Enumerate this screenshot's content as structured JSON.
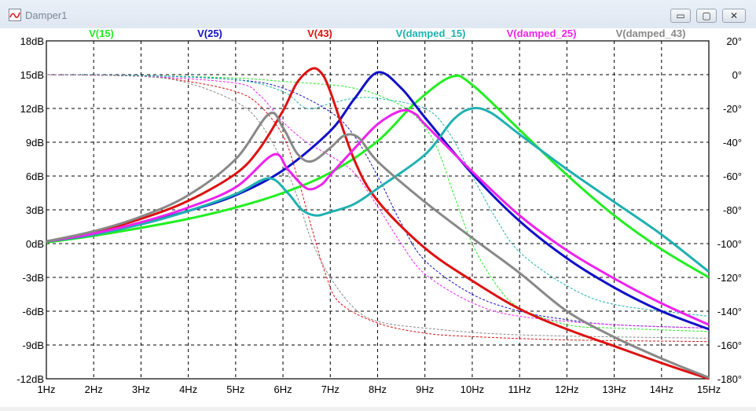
{
  "window": {
    "title": "Damper1",
    "buttons": {
      "minimize": "▭",
      "maximize": "▢",
      "close": "✕"
    }
  },
  "chart_data": {
    "type": "line",
    "legend_position": "top",
    "grid": true,
    "x": [
      1,
      2,
      3,
      4,
      5,
      6,
      7,
      8,
      9,
      10,
      11,
      12,
      13,
      14,
      15
    ],
    "xlim": [
      1,
      15
    ],
    "x_ticks": [
      "1Hz",
      "2Hz",
      "3Hz",
      "4Hz",
      "5Hz",
      "6Hz",
      "7Hz",
      "8Hz",
      "9Hz",
      "10Hz",
      "11Hz",
      "12Hz",
      "13Hz",
      "14Hz",
      "15Hz"
    ],
    "ylim": [
      -12,
      18
    ],
    "y_ticks": [
      "18dB",
      "15dB",
      "12dB",
      "9dB",
      "6dB",
      "3dB",
      "0dB",
      "-3dB",
      "-6dB",
      "-9dB",
      "-12dB"
    ],
    "y2lim": [
      -180,
      20
    ],
    "y2_ticks": [
      "20°",
      "0°",
      "-20°",
      "-40°",
      "-60°",
      "-80°",
      "-100°",
      "-120°",
      "-140°",
      "-160°",
      "-180°"
    ],
    "series": [
      {
        "name": "V(15)",
        "color": "#22ee22",
        "magnitude": [
          [
            1,
            0.1
          ],
          [
            2,
            0.7
          ],
          [
            3,
            1.4
          ],
          [
            4,
            2.2
          ],
          [
            5,
            3.2
          ],
          [
            6,
            4.5
          ],
          [
            7,
            6.3
          ],
          [
            8,
            9.1
          ],
          [
            8.8,
            12.5
          ],
          [
            9.55,
            14.8
          ],
          [
            10,
            14.1
          ],
          [
            11,
            10.1
          ],
          [
            12,
            6.1
          ],
          [
            13,
            2.5
          ],
          [
            14,
            -0.5
          ],
          [
            15,
            -3.0
          ]
        ],
        "phase": [
          [
            1,
            0
          ],
          [
            3,
            -0.5
          ],
          [
            5,
            -2
          ],
          [
            6,
            -4
          ],
          [
            7,
            -6
          ],
          [
            7.5,
            -8
          ],
          [
            8,
            -12
          ],
          [
            8.7,
            -22
          ],
          [
            9.2,
            -40
          ],
          [
            9.6,
            -70
          ],
          [
            10,
            -100
          ],
          [
            10.5,
            -124
          ],
          [
            11,
            -138
          ],
          [
            12,
            -148
          ],
          [
            13,
            -150
          ],
          [
            15,
            -152
          ]
        ]
      },
      {
        "name": "V(25)",
        "color": "#1010c8",
        "magnitude": [
          [
            1,
            0.2
          ],
          [
            2,
            0.8
          ],
          [
            3,
            1.8
          ],
          [
            4,
            2.9
          ],
          [
            5,
            4.3
          ],
          [
            6,
            6.5
          ],
          [
            7,
            10.0
          ],
          [
            7.5,
            12.8
          ],
          [
            8,
            15.2
          ],
          [
            8.5,
            13.8
          ],
          [
            9,
            11.2
          ],
          [
            10,
            6.2
          ],
          [
            11,
            2.0
          ],
          [
            12,
            -1.3
          ],
          [
            13,
            -3.9
          ],
          [
            14,
            -6.0
          ],
          [
            15,
            -7.6
          ]
        ],
        "phase": [
          [
            1,
            0
          ],
          [
            3,
            -0.5
          ],
          [
            5,
            -3
          ],
          [
            6,
            -8
          ],
          [
            7,
            -22
          ],
          [
            7.5,
            -36
          ],
          [
            8,
            -60
          ],
          [
            8.5,
            -88
          ],
          [
            9,
            -110
          ],
          [
            10,
            -130
          ],
          [
            11,
            -140
          ],
          [
            12,
            -145
          ],
          [
            13,
            -148
          ],
          [
            15,
            -150
          ]
        ]
      },
      {
        "name": "V(43)",
        "color": "#dd1111",
        "magnitude": [
          [
            1,
            0.2
          ],
          [
            2,
            1.0
          ],
          [
            3,
            2.2
          ],
          [
            4,
            3.8
          ],
          [
            5,
            6.2
          ],
          [
            5.5,
            8.4
          ],
          [
            6,
            11.8
          ],
          [
            6.3,
            14.3
          ],
          [
            6.6,
            15.5
          ],
          [
            6.8,
            15.2
          ],
          [
            7,
            13.5
          ],
          [
            7.5,
            7.5
          ],
          [
            8,
            3.8
          ],
          [
            9,
            -0.4
          ],
          [
            10,
            -3.3
          ],
          [
            11,
            -5.8
          ],
          [
            12,
            -7.6
          ],
          [
            13,
            -9.1
          ],
          [
            14,
            -10.6
          ],
          [
            15,
            -12.0
          ]
        ],
        "phase": [
          [
            1,
            0
          ],
          [
            3,
            -1
          ],
          [
            4,
            -4
          ],
          [
            5,
            -10
          ],
          [
            5.5,
            -18
          ],
          [
            6,
            -36
          ],
          [
            6.3,
            -60
          ],
          [
            6.6,
            -90
          ],
          [
            6.9,
            -118
          ],
          [
            7.2,
            -135
          ],
          [
            8,
            -147
          ],
          [
            9,
            -153
          ],
          [
            10,
            -155
          ],
          [
            12,
            -157
          ],
          [
            15,
            -158
          ]
        ]
      },
      {
        "name": "V(damped_15)",
        "color": "#20b0b0",
        "magnitude": [
          [
            1,
            0.2
          ],
          [
            2,
            0.8
          ],
          [
            3,
            1.7
          ],
          [
            4,
            2.9
          ],
          [
            5,
            4.4
          ],
          [
            5.7,
            5.8
          ],
          [
            6.1,
            4.5
          ],
          [
            6.4,
            3.0
          ],
          [
            6.7,
            2.5
          ],
          [
            7,
            2.8
          ],
          [
            7.5,
            3.5
          ],
          [
            8,
            4.9
          ],
          [
            9,
            7.9
          ],
          [
            9.6,
            11.0
          ],
          [
            10,
            12.0
          ],
          [
            10.4,
            11.6
          ],
          [
            11,
            9.7
          ],
          [
            12,
            6.6
          ],
          [
            13,
            3.7
          ],
          [
            14,
            0.8
          ],
          [
            15,
            -2.5
          ]
        ],
        "phase": [
          [
            1,
            0
          ],
          [
            3,
            -0.5
          ],
          [
            5,
            -3
          ],
          [
            6,
            -10
          ],
          [
            6.5,
            -20
          ],
          [
            7,
            -17
          ],
          [
            7.5,
            -14
          ],
          [
            8,
            -14
          ],
          [
            9,
            -20
          ],
          [
            9.5,
            -34
          ],
          [
            10,
            -60
          ],
          [
            10.5,
            -85
          ],
          [
            11,
            -105
          ],
          [
            12,
            -125
          ],
          [
            13,
            -136
          ],
          [
            15,
            -143
          ]
        ]
      },
      {
        "name": "V(damped_25)",
        "color": "#ee22ee",
        "magnitude": [
          [
            1,
            0.2
          ],
          [
            2,
            0.9
          ],
          [
            3,
            1.9
          ],
          [
            4,
            3.2
          ],
          [
            5,
            5.0
          ],
          [
            5.8,
            7.9
          ],
          [
            6.1,
            6.6
          ],
          [
            6.5,
            4.9
          ],
          [
            6.8,
            5.2
          ],
          [
            7,
            6.1
          ],
          [
            7.5,
            8.4
          ],
          [
            8,
            10.6
          ],
          [
            8.5,
            11.8
          ],
          [
            8.8,
            11.5
          ],
          [
            9,
            10.6
          ],
          [
            10,
            6.4
          ],
          [
            11,
            2.5
          ],
          [
            12,
            -0.6
          ],
          [
            13,
            -3.1
          ],
          [
            14,
            -5.3
          ],
          [
            15,
            -7.2
          ]
        ],
        "phase": [
          [
            1,
            0
          ],
          [
            3,
            -1
          ],
          [
            5,
            -5
          ],
          [
            5.5,
            -12
          ],
          [
            6,
            -28
          ],
          [
            6.5,
            -40
          ],
          [
            7,
            -48
          ],
          [
            7.5,
            -58
          ],
          [
            8,
            -78
          ],
          [
            8.5,
            -100
          ],
          [
            9,
            -118
          ],
          [
            10,
            -135
          ],
          [
            11,
            -143
          ],
          [
            13,
            -148
          ],
          [
            15,
            -150
          ]
        ]
      },
      {
        "name": "V(damped_43)",
        "color": "#888888",
        "magnitude": [
          [
            1,
            0.2
          ],
          [
            2,
            1.1
          ],
          [
            3,
            2.4
          ],
          [
            4,
            4.3
          ],
          [
            5,
            7.5
          ],
          [
            5.7,
            11.5
          ],
          [
            6,
            10.3
          ],
          [
            6.3,
            8.0
          ],
          [
            6.6,
            7.3
          ],
          [
            7,
            8.5
          ],
          [
            7.3,
            9.6
          ],
          [
            7.6,
            9.4
          ],
          [
            8,
            7.3
          ],
          [
            9,
            3.7
          ],
          [
            10,
            0.5
          ],
          [
            11,
            -2.6
          ],
          [
            12,
            -6.0
          ],
          [
            13,
            -8.3
          ],
          [
            14,
            -10.2
          ],
          [
            15,
            -11.9
          ]
        ],
        "phase": [
          [
            1,
            0
          ],
          [
            3,
            -1
          ],
          [
            4,
            -5
          ],
          [
            5,
            -16
          ],
          [
            5.5,
            -28
          ],
          [
            6,
            -52
          ],
          [
            6.3,
            -72
          ],
          [
            6.6,
            -98
          ],
          [
            7,
            -120
          ],
          [
            7.5,
            -138
          ],
          [
            8,
            -146
          ],
          [
            9,
            -150
          ],
          [
            11,
            -154
          ],
          [
            15,
            -156
          ]
        ]
      }
    ]
  }
}
